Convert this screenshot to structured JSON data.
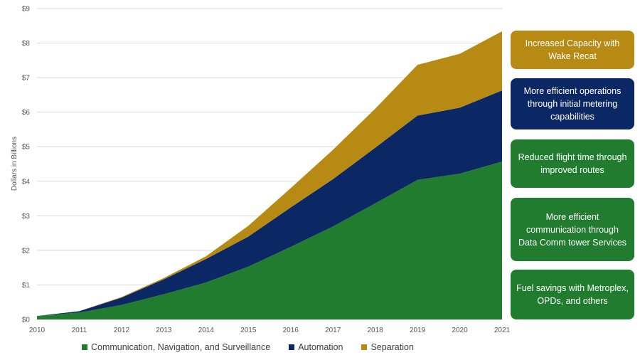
{
  "chart_data": {
    "type": "area",
    "stacked": true,
    "x": [
      "2010",
      "2011",
      "2012",
      "2013",
      "2014",
      "2015",
      "2016",
      "2017",
      "2018",
      "2019",
      "2020",
      "2021"
    ],
    "series": [
      {
        "name": "Communication, Navigation, and Surveillance",
        "color": "#217c30",
        "values": [
          0.1,
          0.2,
          0.42,
          0.73,
          1.07,
          1.53,
          2.1,
          2.69,
          3.36,
          4.04,
          4.22,
          4.57
        ]
      },
      {
        "name": "Automation",
        "color": "#0c2864",
        "values": [
          0.0,
          0.04,
          0.21,
          0.43,
          0.68,
          0.87,
          1.14,
          1.37,
          1.61,
          1.86,
          1.91,
          2.06
        ]
      },
      {
        "name": "Separation",
        "color": "#b68a13",
        "values": [
          0.0,
          0.0,
          0.02,
          0.04,
          0.08,
          0.31,
          0.56,
          0.85,
          1.13,
          1.47,
          1.56,
          1.71
        ]
      }
    ],
    "ylabel": "Dollars in Billions",
    "ylim": [
      0,
      9
    ],
    "yticks": [
      "$0",
      "$1",
      "$2",
      "$3",
      "$4",
      "$5",
      "$6",
      "$7",
      "$8",
      "$9"
    ],
    "grid": true,
    "legend": "bottom"
  },
  "callouts": [
    {
      "text": "Increased Capacity with Wake Recat",
      "color": "#b68a13"
    },
    {
      "text": "More efficient operations through initial metering capabilities",
      "color": "#0c2864"
    },
    {
      "text": "Reduced flight time through improved routes",
      "color": "#217c30"
    },
    {
      "text": "More efficient communication through Data Comm tower Services",
      "color": "#217c30"
    },
    {
      "text": "Fuel savings with Metroplex, OPDs, and others",
      "color": "#217c30"
    }
  ]
}
